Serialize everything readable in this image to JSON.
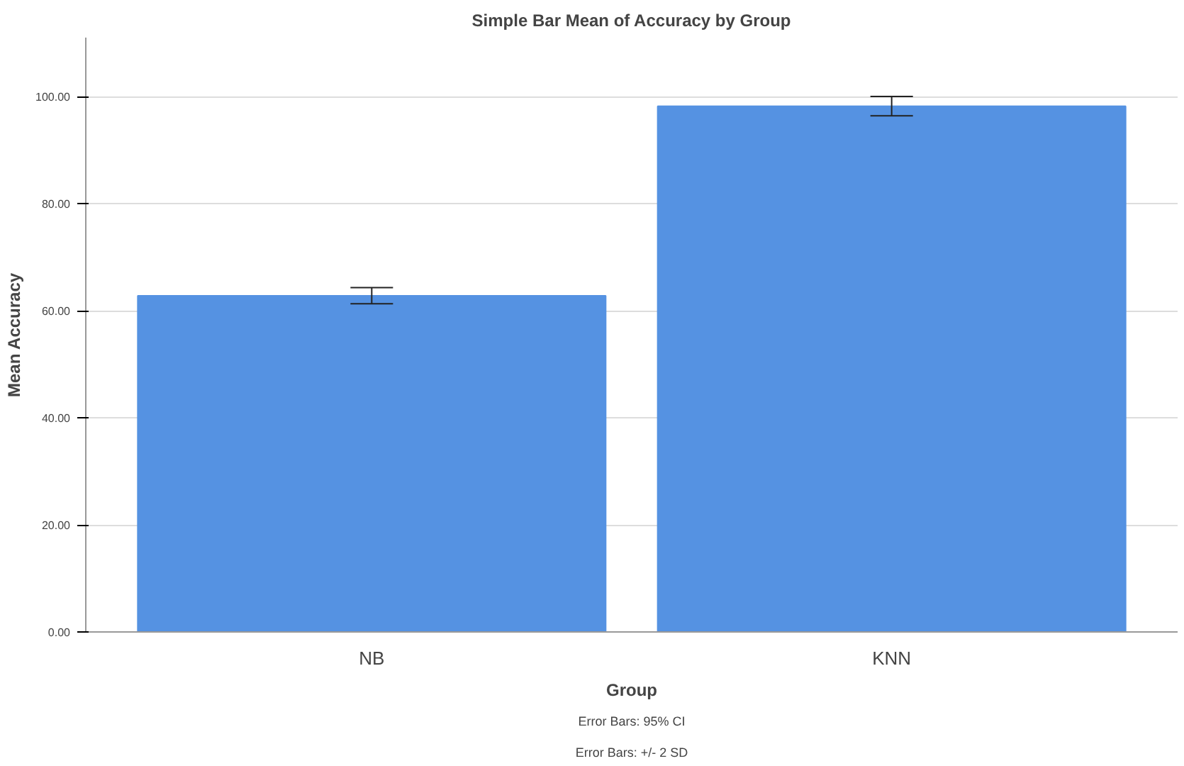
{
  "chart_data": {
    "type": "bar",
    "title": "Simple Bar Mean of Accuracy by Group",
    "xlabel": "Group",
    "ylabel": "Mean Accuracy",
    "categories": [
      "NB",
      "KNN"
    ],
    "values": [
      62.8,
      98.2
    ],
    "errors": [
      1.5,
      1.8
    ],
    "color": "#5592e2",
    "ylim": [
      0,
      111
    ],
    "yticks": [
      {
        "value": 0,
        "label": "0.00"
      },
      {
        "value": 20,
        "label": "20.00"
      },
      {
        "value": 40,
        "label": "40.00"
      },
      {
        "value": 60,
        "label": "60.00"
      },
      {
        "value": 80,
        "label": "80.00"
      },
      {
        "value": 100,
        "label": "100.00"
      }
    ],
    "grid": "y",
    "annotations": [
      "Error Bars: 95% CI",
      "Error Bars: +/- 2 SD"
    ]
  }
}
